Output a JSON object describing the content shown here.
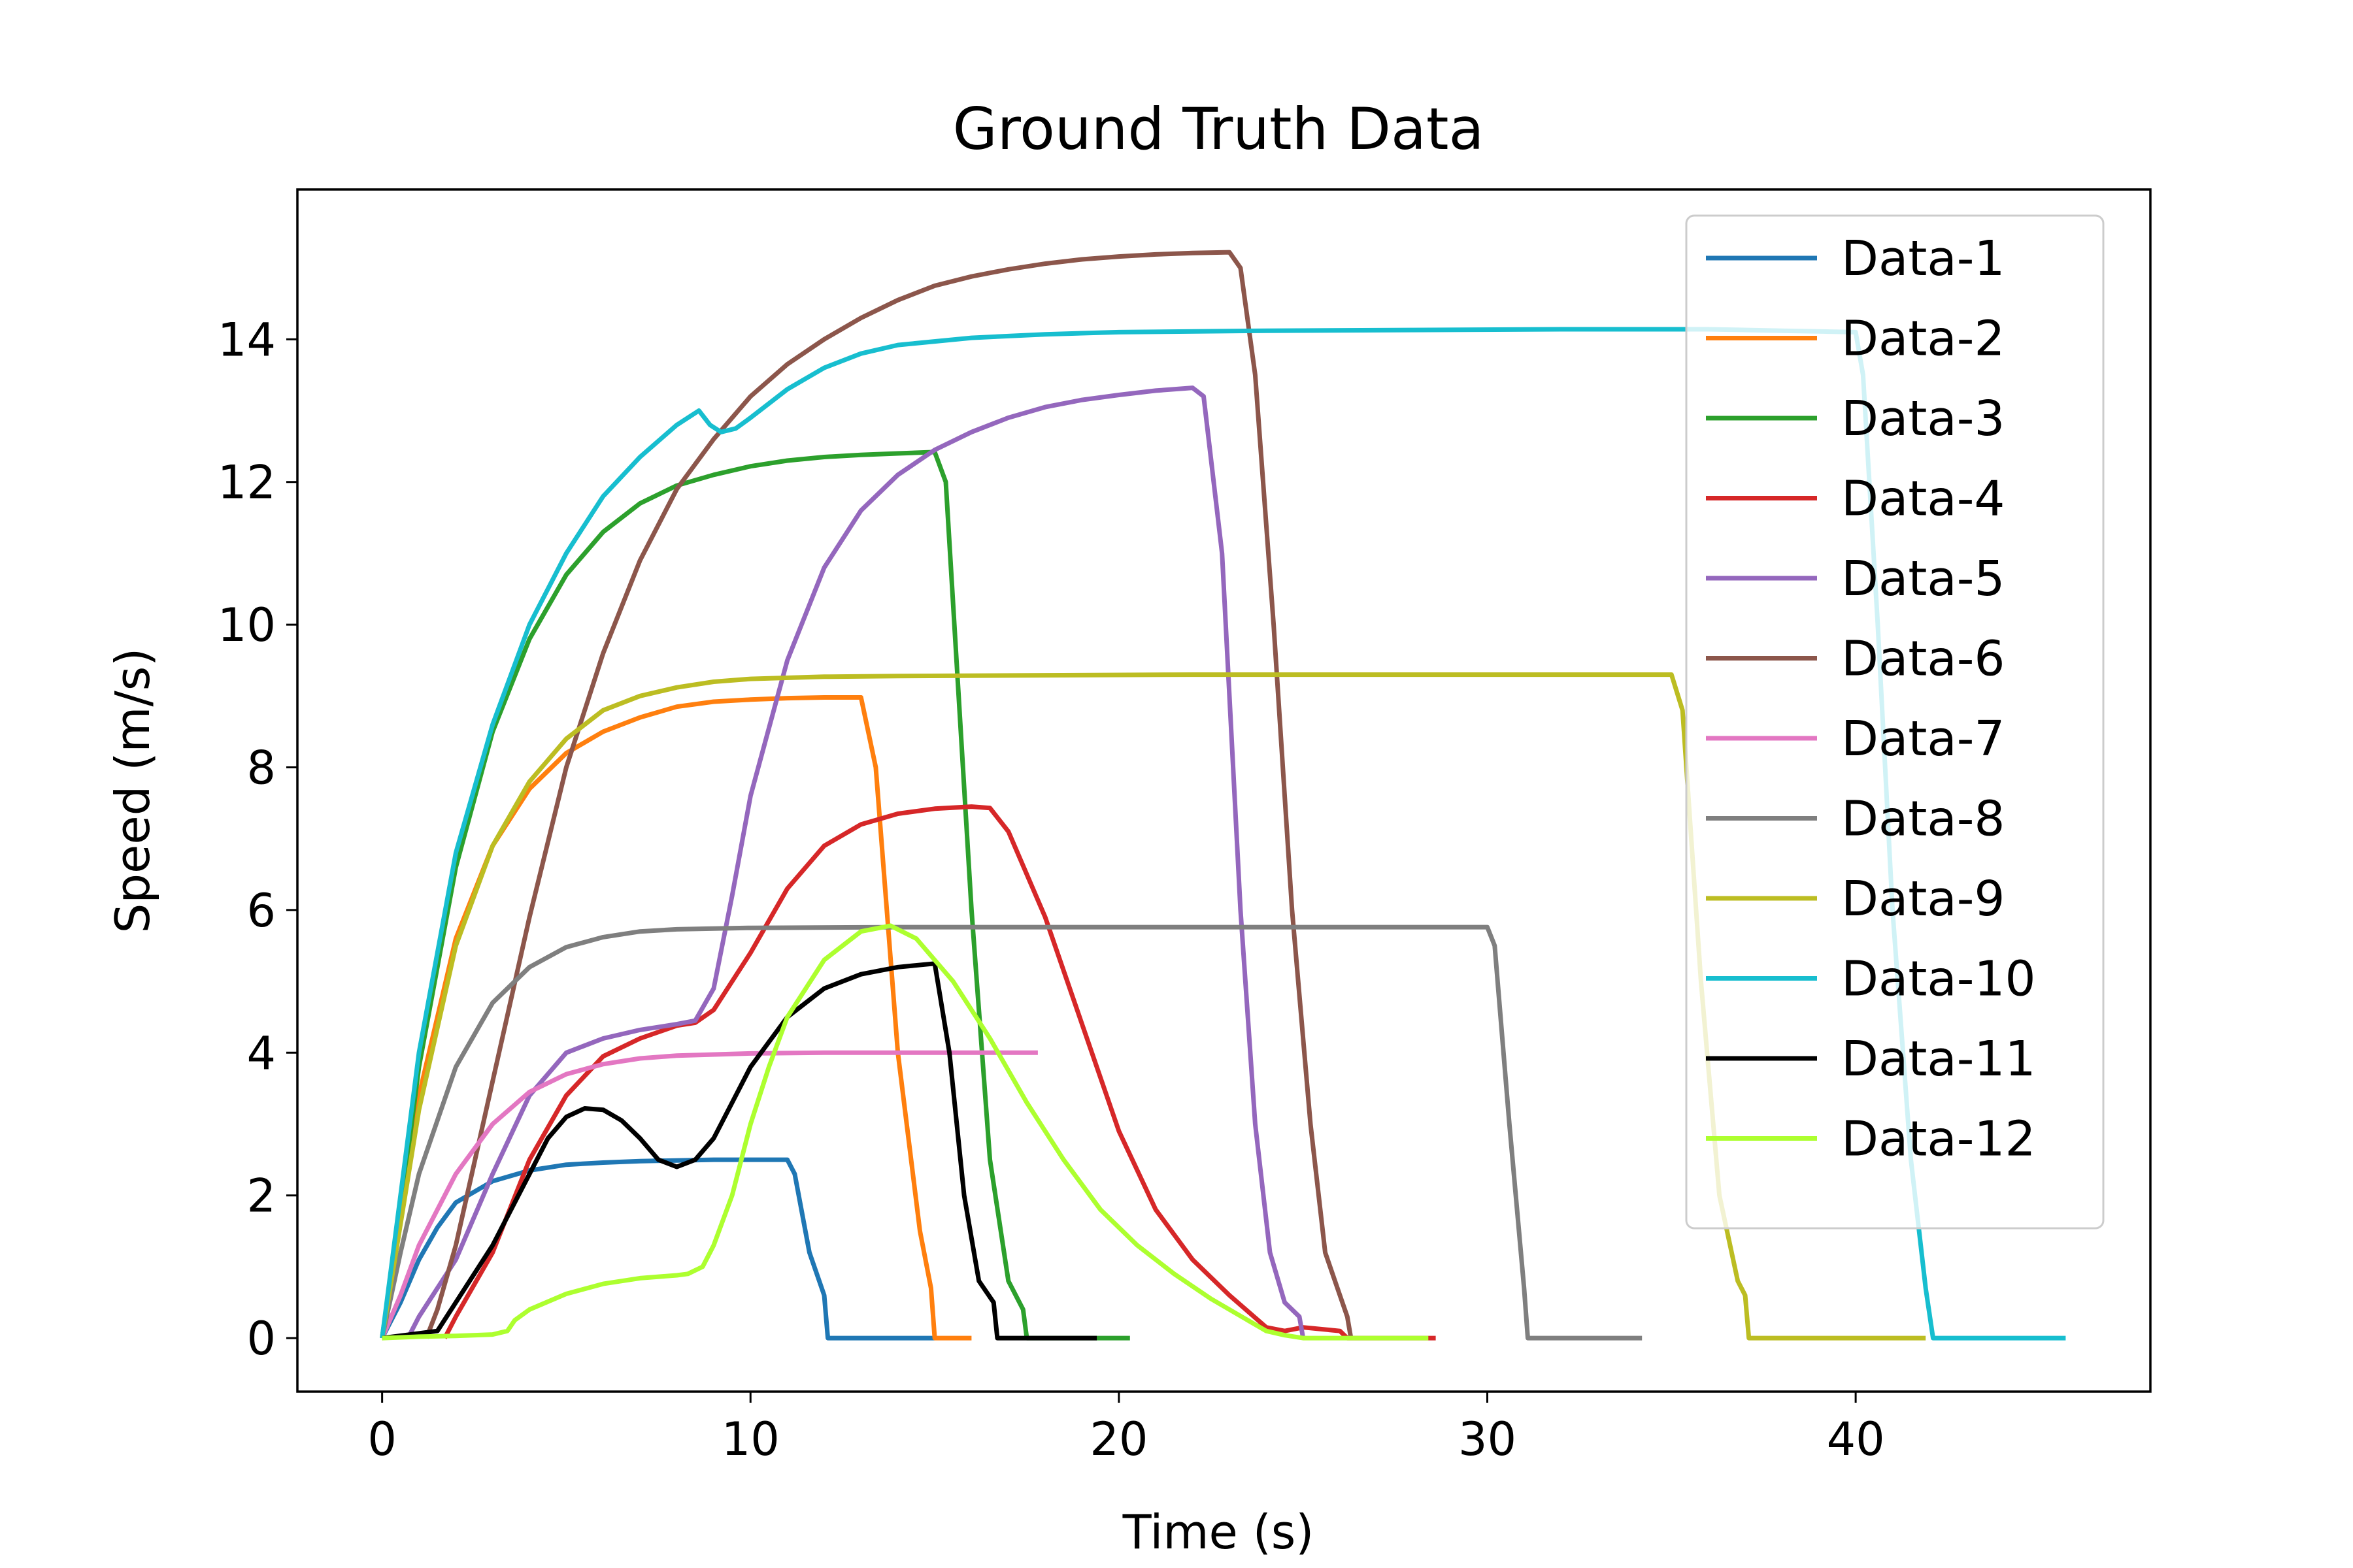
{
  "chart_data": {
    "type": "line",
    "title": "Ground Truth Data",
    "xlabel": "Time (s)",
    "ylabel": "Speed (m/s)",
    "xlim": [
      -2.3,
      48.0
    ],
    "ylim": [
      -0.75,
      16.1
    ],
    "xticks": [
      0,
      10,
      20,
      30,
      40
    ],
    "yticks": [
      0,
      2,
      4,
      6,
      8,
      10,
      12,
      14
    ],
    "grid": false,
    "legend_position": "top-right",
    "series": [
      {
        "name": "Data-1",
        "color": "#1f77b4",
        "x": [
          0,
          0.5,
          1,
          1.5,
          2,
          3,
          4,
          5,
          6,
          7,
          8,
          9,
          10,
          11,
          11.2,
          11.6,
          12,
          12.1,
          15
        ],
        "y": [
          0,
          0.5,
          1.1,
          1.55,
          1.9,
          2.2,
          2.35,
          2.43,
          2.46,
          2.48,
          2.49,
          2.5,
          2.5,
          2.5,
          2.3,
          1.2,
          0.6,
          0,
          0
        ]
      },
      {
        "name": "Data-2",
        "color": "#ff7f0e",
        "x": [
          0,
          0.5,
          1,
          2,
          3,
          4,
          5,
          6,
          7,
          8,
          9,
          10,
          11,
          12,
          13,
          13.4,
          14,
          14.6,
          14.9,
          15,
          16
        ],
        "y": [
          0,
          1.8,
          3.4,
          5.6,
          6.9,
          7.7,
          8.2,
          8.5,
          8.7,
          8.85,
          8.92,
          8.95,
          8.97,
          8.98,
          8.98,
          8,
          4,
          1.5,
          0.7,
          0,
          0
        ]
      },
      {
        "name": "Data-3",
        "color": "#2ca02c",
        "x": [
          0,
          0.5,
          1,
          2,
          3,
          4,
          5,
          6,
          7,
          8,
          9,
          10,
          11,
          12,
          13,
          14,
          15,
          15.3,
          16,
          16.5,
          17,
          17.4,
          17.5,
          20.3
        ],
        "y": [
          0,
          1.8,
          3.8,
          6.6,
          8.5,
          9.8,
          10.7,
          11.3,
          11.7,
          11.95,
          12.1,
          12.22,
          12.3,
          12.35,
          12.38,
          12.4,
          12.42,
          12,
          6,
          2.5,
          0.8,
          0.4,
          0,
          0
        ]
      },
      {
        "name": "Data-4",
        "color": "#d62728",
        "x": [
          1.7,
          2,
          3,
          4,
          5,
          6,
          7,
          8,
          8.5,
          9,
          10,
          11,
          12,
          13,
          14,
          15,
          16,
          16.5,
          17,
          18,
          19,
          20,
          21,
          22,
          23,
          24,
          24.5,
          25,
          26,
          26.2,
          28.6
        ],
        "y": [
          0,
          0.3,
          1.2,
          2.5,
          3.4,
          3.95,
          4.2,
          4.38,
          4.42,
          4.6,
          5.4,
          6.3,
          6.9,
          7.2,
          7.35,
          7.42,
          7.45,
          7.43,
          7.1,
          5.9,
          4.4,
          2.9,
          1.8,
          1.1,
          0.6,
          0.15,
          0.1,
          0.15,
          0.1,
          0,
          0
        ]
      },
      {
        "name": "Data-5",
        "color": "#9467bd",
        "x": [
          0.7,
          1,
          2,
          3,
          4,
          5,
          6,
          7,
          8,
          8.5,
          9,
          9.5,
          10,
          11,
          12,
          13,
          14,
          15,
          16,
          17,
          18,
          19,
          20,
          21,
          22,
          22.3,
          22.8,
          23.3,
          23.7,
          24.1,
          24.5,
          24.9,
          25
        ],
        "y": [
          0,
          0.3,
          1.1,
          2.3,
          3.4,
          4.0,
          4.2,
          4.32,
          4.4,
          4.45,
          4.9,
          6.2,
          7.6,
          9.5,
          10.8,
          11.6,
          12.1,
          12.45,
          12.7,
          12.9,
          13.05,
          13.15,
          13.22,
          13.28,
          13.32,
          13.2,
          11,
          6,
          3,
          1.2,
          0.5,
          0.3,
          0
        ]
      },
      {
        "name": "Data-6",
        "color": "#8c564b",
        "x": [
          1.2,
          1.5,
          2,
          3,
          4,
          5,
          6,
          7,
          8,
          9,
          10,
          11,
          12,
          13,
          14,
          15,
          16,
          17,
          18,
          19,
          20,
          21,
          22,
          23,
          23.3,
          23.7,
          24.2,
          24.7,
          25.2,
          25.6,
          26,
          26.2,
          26.3
        ],
        "y": [
          0,
          0.4,
          1.3,
          3.6,
          5.9,
          8.0,
          9.6,
          10.9,
          11.9,
          12.6,
          13.2,
          13.65,
          14.0,
          14.3,
          14.55,
          14.75,
          14.88,
          14.98,
          15.06,
          15.12,
          15.16,
          15.19,
          15.21,
          15.22,
          15.0,
          13.5,
          10,
          6,
          3,
          1.2,
          0.6,
          0.3,
          0
        ]
      },
      {
        "name": "Data-7",
        "color": "#e377c2",
        "x": [
          0,
          0.5,
          1,
          2,
          3,
          4,
          5,
          6,
          7,
          8,
          10,
          12,
          14,
          16,
          17.8
        ],
        "y": [
          0,
          0.6,
          1.3,
          2.3,
          3.0,
          3.45,
          3.7,
          3.84,
          3.92,
          3.96,
          3.99,
          4.0,
          4.0,
          4.0,
          4.0
        ]
      },
      {
        "name": "Data-8",
        "color": "#7f7f7f",
        "x": [
          0,
          0.5,
          1,
          2,
          3,
          4,
          5,
          6,
          7,
          8,
          10,
          14,
          18,
          22,
          26,
          29,
          30,
          30.2,
          30.6,
          31,
          31.1,
          34.2
        ],
        "y": [
          0,
          1.2,
          2.3,
          3.8,
          4.7,
          5.2,
          5.48,
          5.62,
          5.7,
          5.73,
          5.75,
          5.76,
          5.76,
          5.76,
          5.76,
          5.76,
          5.76,
          5.5,
          3.0,
          0.7,
          0,
          0
        ]
      },
      {
        "name": "Data-9",
        "color": "#bcbd22",
        "x": [
          0,
          0.5,
          1,
          2,
          3,
          4,
          5,
          6,
          7,
          8,
          9,
          10,
          12,
          14,
          18,
          22,
          26,
          30,
          34,
          35,
          35.3,
          35.8,
          36.3,
          36.8,
          37,
          37.1,
          41.9
        ],
        "y": [
          0,
          1.6,
          3.2,
          5.5,
          6.9,
          7.8,
          8.4,
          8.8,
          9.0,
          9.12,
          9.2,
          9.24,
          9.27,
          9.28,
          9.29,
          9.3,
          9.3,
          9.3,
          9.3,
          9.3,
          8.8,
          5,
          2,
          0.8,
          0.6,
          0,
          0
        ]
      },
      {
        "name": "Data-10",
        "color": "#17becf",
        "x": [
          0,
          0.5,
          1,
          2,
          3,
          4,
          5,
          6,
          7,
          8,
          8.6,
          8.9,
          9.2,
          9.6,
          10,
          11,
          12,
          13,
          14,
          16,
          18,
          20,
          24,
          28,
          32,
          36,
          38,
          40,
          40.2,
          40.6,
          41,
          41.5,
          41.9,
          42.1,
          45.7
        ],
        "y": [
          0,
          2.0,
          4.0,
          6.8,
          8.6,
          10.0,
          11.0,
          11.8,
          12.35,
          12.8,
          13.0,
          12.8,
          12.7,
          12.75,
          12.9,
          13.3,
          13.6,
          13.8,
          13.92,
          14.02,
          14.07,
          14.1,
          14.12,
          14.13,
          14.14,
          14.14,
          14.12,
          14.1,
          13.5,
          10,
          6,
          2.5,
          0.7,
          0,
          0
        ]
      },
      {
        "name": "Data-11",
        "color": "#000000",
        "x": [
          0,
          1.5,
          2,
          3,
          4,
          4.5,
          5,
          5.5,
          6,
          6.5,
          7,
          7.5,
          8,
          8.5,
          9,
          9.5,
          10,
          11,
          12,
          13,
          14,
          15,
          15.4,
          15.8,
          16.2,
          16.6,
          16.7,
          17,
          19.4
        ],
        "y": [
          0,
          0.1,
          0.5,
          1.3,
          2.3,
          2.8,
          3.1,
          3.22,
          3.2,
          3.05,
          2.8,
          2.5,
          2.4,
          2.5,
          2.8,
          3.3,
          3.8,
          4.5,
          4.9,
          5.1,
          5.2,
          5.25,
          4,
          2,
          0.8,
          0.5,
          0,
          0,
          0
        ]
      },
      {
        "name": "Data-12",
        "color": "#adff2f",
        "x": [
          0,
          1,
          2,
          3,
          3.4,
          3.6,
          4,
          5,
          6,
          7,
          8,
          8.3,
          8.7,
          9,
          9.5,
          10,
          10.5,
          11,
          12,
          13,
          13.8,
          14.5,
          15.5,
          16.5,
          17.5,
          18.5,
          19.5,
          20.5,
          21.5,
          22.5,
          23.5,
          24,
          24.5,
          25,
          26,
          28.4
        ],
        "y": [
          0,
          0.02,
          0.03,
          0.05,
          0.1,
          0.25,
          0.4,
          0.62,
          0.76,
          0.84,
          0.88,
          0.9,
          1.0,
          1.3,
          2.0,
          3.0,
          3.8,
          4.5,
          5.3,
          5.7,
          5.78,
          5.6,
          5.0,
          4.2,
          3.3,
          2.5,
          1.8,
          1.3,
          0.9,
          0.55,
          0.25,
          0.1,
          0.04,
          0,
          0,
          0
        ]
      }
    ]
  }
}
